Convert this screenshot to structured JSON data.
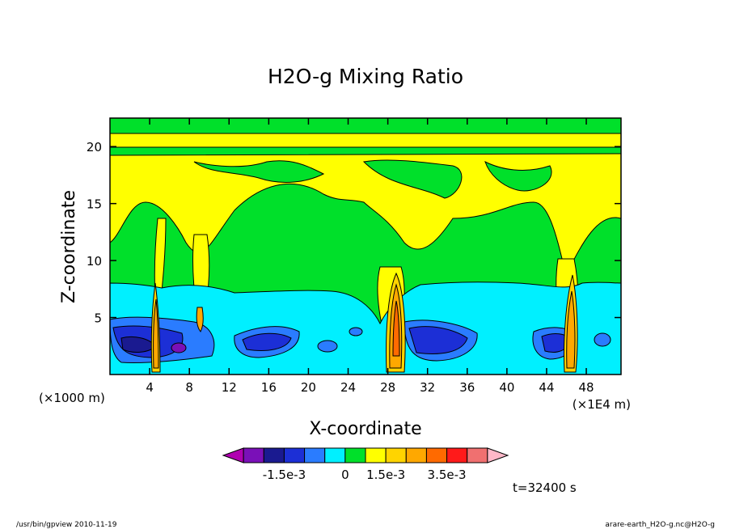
{
  "chart_data": {
    "type": "heatmap",
    "title": "H2O-g Mixing Ratio",
    "xlabel": "X-coordinate",
    "ylabel": "Z-coordinate",
    "x_unit_left": "(×1000 m)",
    "x_unit_right": "(×1E4 m)",
    "xticks": [
      "4",
      "8",
      "12",
      "16",
      "20",
      "24",
      "28",
      "32",
      "36",
      "40",
      "44",
      "48"
    ],
    "yticks": [
      "5",
      "10",
      "15",
      "20"
    ],
    "xlim": [
      0,
      51.5
    ],
    "ylim": [
      0,
      22.5
    ],
    "time_label": "t=32400 s",
    "colorbar": {
      "colors": [
        "#b000b0",
        "#7a10b8",
        "#1a1a90",
        "#1c2fd6",
        "#2a7cff",
        "#00f0ff",
        "#00e02a",
        "#ffff00",
        "#ffd400",
        "#ffa800",
        "#ff6a00",
        "#ff1a1a",
        "#f07070",
        "#ffb8c8"
      ],
      "labels": [
        "-1.5e-3",
        "0",
        "1.5e-3",
        "3.5e-3"
      ]
    },
    "regions": [
      {
        "level": "positive_high",
        "color": "#ffff00",
        "x_range": [
          0,
          51.5
        ],
        "z_range": [
          14,
          21.5
        ]
      },
      {
        "level": "near_zero",
        "color": "#00e02a",
        "x_range": [
          0,
          51.5
        ],
        "z_range": [
          8,
          14
        ]
      },
      {
        "level": "negative_low",
        "color": "#00f0ff",
        "x_range": [
          0,
          51.5
        ],
        "z_range": [
          1,
          7.5
        ]
      },
      {
        "level": "negative_mid",
        "color": "#1c2fd6",
        "x_range": [
          1,
          10
        ],
        "z_range": [
          1,
          5
        ]
      },
      {
        "level": "negative_min",
        "color": "#7a10b8",
        "x_range": [
          6,
          8
        ],
        "z_range": [
          1.5,
          3
        ]
      },
      {
        "level": "updraft_max",
        "color": "#ff6a00",
        "x_range": [
          4.5,
          5.5
        ],
        "z_range": [
          0,
          8
        ]
      },
      {
        "level": "updraft_max",
        "color": "#ff6a00",
        "x_range": [
          27.5,
          29
        ],
        "z_range": [
          0,
          8.5
        ]
      },
      {
        "level": "updraft_max",
        "color": "#ff6a00",
        "x_range": [
          46,
          47
        ],
        "z_range": [
          0,
          8
        ]
      }
    ]
  },
  "footer": {
    "left": "/usr/bin/gpview  2010-11-19",
    "right": "arare-earth_H2O-g.nc@H2O-g"
  }
}
